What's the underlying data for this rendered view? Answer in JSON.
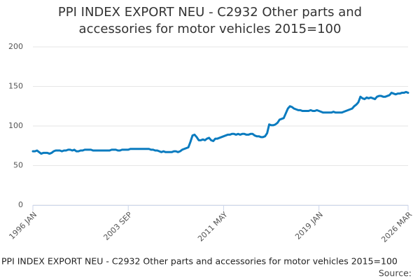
{
  "chart_data": {
    "type": "line",
    "title": "PPI INDEX EXPORT NEU - C2932 Other parts and accessories for motor vehicles 2015=100",
    "caption": "PPI INDEX EXPORT NEU - C2932 Other parts and accessories for motor vehicles 2015=100",
    "source": "Source:",
    "categories": [
      "1996 JAN",
      null,
      null,
      null,
      null,
      null,
      null,
      null,
      null,
      null,
      null,
      null,
      null,
      null,
      null,
      null,
      null,
      null,
      null,
      null,
      null,
      null,
      null,
      null,
      null,
      null,
      null,
      null,
      null,
      null,
      null,
      null,
      null,
      null,
      null,
      null,
      null,
      null,
      null,
      null,
      null,
      null,
      null,
      null,
      null,
      null,
      "2003 SEP",
      null,
      null,
      null,
      null,
      null,
      null,
      null,
      null,
      null,
      null,
      null,
      null,
      null,
      null,
      null,
      null,
      null,
      null,
      null,
      null,
      null,
      null,
      null,
      null,
      null,
      null,
      null,
      null,
      null,
      null,
      null,
      null,
      null,
      null,
      null,
      null,
      null,
      null,
      null,
      null,
      null,
      null,
      null,
      null,
      null,
      "2011 MAY",
      null,
      null,
      null,
      null,
      null,
      null,
      null,
      null,
      null,
      null,
      null,
      null,
      null,
      null,
      null,
      null,
      null,
      null,
      null,
      null,
      null,
      null,
      null,
      null,
      null,
      null,
      null,
      null,
      null,
      null,
      null,
      null,
      null,
      null,
      null,
      null,
      null,
      null,
      null,
      null,
      null,
      null,
      null,
      null,
      null,
      "2019 JAN",
      null,
      null,
      null,
      null,
      null,
      null,
      null,
      null,
      null,
      null,
      null,
      null,
      null,
      null,
      null,
      null,
      null,
      null,
      null,
      null,
      null,
      null,
      null,
      null,
      null,
      null,
      null,
      null,
      null,
      null,
      null,
      null,
      null,
      null,
      null,
      null,
      null,
      null,
      null,
      null,
      null,
      null,
      "2026 MAR"
    ],
    "series": [
      {
        "color": "#0a7bbf",
        "values": [
          68,
          68,
          69,
          67,
          65,
          66,
          66,
          66,
          65,
          66,
          68,
          69,
          69,
          69,
          68,
          69,
          69,
          70,
          70,
          69,
          70,
          68,
          68,
          69,
          69,
          70,
          70,
          70,
          70,
          69,
          69,
          69,
          69,
          69,
          69,
          69,
          69,
          69,
          70,
          70,
          70,
          69,
          69,
          70,
          70,
          70,
          70,
          71,
          71,
          71,
          71,
          71,
          71,
          71,
          71,
          71,
          71,
          70,
          70,
          69,
          69,
          68,
          67,
          68,
          67,
          67,
          67,
          67,
          68,
          68,
          67,
          68,
          70,
          71,
          72,
          73,
          80,
          88,
          89,
          86,
          82,
          82,
          83,
          82,
          84,
          85,
          82,
          81,
          84,
          84,
          85,
          86,
          87,
          88,
          89,
          89,
          90,
          90,
          89,
          90,
          89,
          90,
          90,
          89,
          89,
          90,
          90,
          88,
          87,
          87,
          86,
          86,
          87,
          91,
          102,
          101,
          101,
          102,
          104,
          108,
          109,
          110,
          116,
          122,
          125,
          124,
          122,
          121,
          120,
          120,
          119,
          119,
          119,
          119,
          120,
          119,
          119,
          120,
          119,
          118,
          117,
          117,
          117,
          117,
          117,
          118,
          117,
          117,
          117,
          117,
          118,
          119,
          120,
          121,
          122,
          125,
          127,
          130,
          137,
          135,
          134,
          136,
          135,
          136,
          135,
          134,
          137,
          138,
          138,
          137,
          137,
          138,
          139,
          142,
          141,
          140,
          141,
          141,
          142,
          142,
          143,
          142
        ]
      }
    ],
    "ylim": [
      0,
      200
    ],
    "yticks": [
      0,
      50,
      100,
      150,
      200
    ],
    "grid": true
  }
}
